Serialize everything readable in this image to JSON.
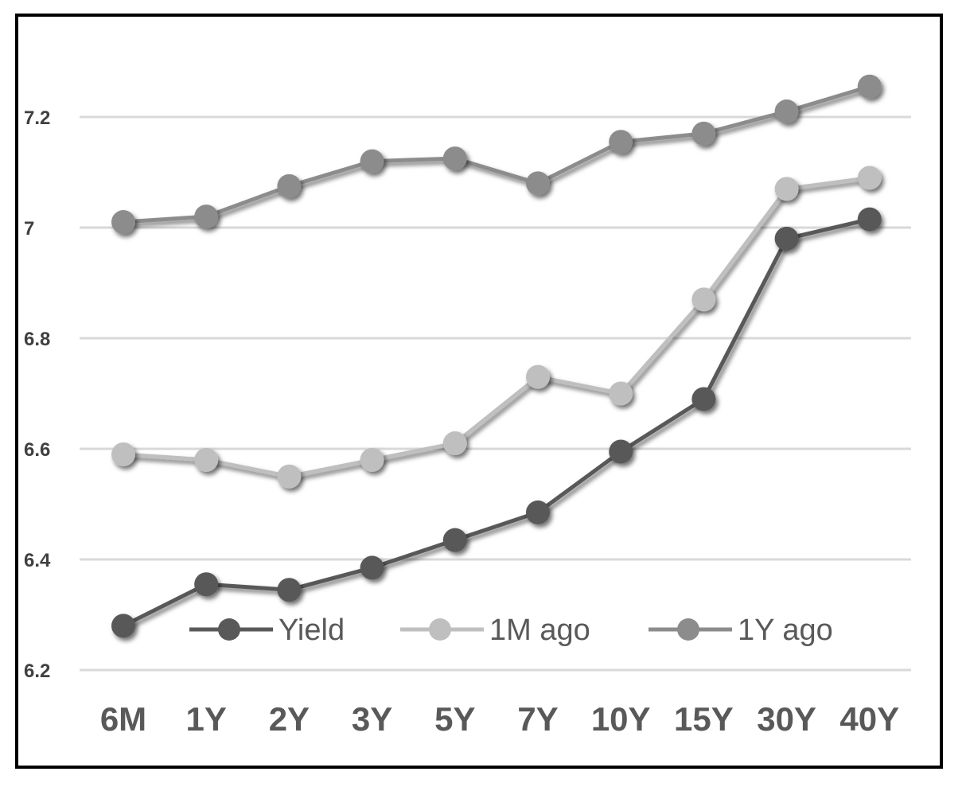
{
  "chart_data": {
    "type": "line",
    "title": "",
    "xlabel": "",
    "ylabel": "",
    "categories": [
      "6M",
      "1Y",
      "2Y",
      "3Y",
      "5Y",
      "7Y",
      "10Y",
      "15Y",
      "30Y",
      "40Y"
    ],
    "ylim": [
      6.2,
      7.3
    ],
    "yticks": [
      "6.2",
      "6.4",
      "6.6",
      "6.8",
      "7",
      "7.2"
    ],
    "grid": true,
    "legend_position": "bottom-inside",
    "series": [
      {
        "name": "Yield",
        "color": "#595959",
        "values": [
          6.28,
          6.355,
          6.345,
          6.385,
          6.435,
          6.485,
          6.595,
          6.69,
          6.98,
          7.015
        ]
      },
      {
        "name": "1M ago",
        "color": "#bfbfbf",
        "values": [
          6.59,
          6.58,
          6.55,
          6.58,
          6.61,
          6.73,
          6.7,
          6.87,
          7.07,
          7.09
        ]
      },
      {
        "name": "1Y ago",
        "color": "#8c8c8c",
        "values": [
          7.01,
          7.02,
          7.075,
          7.12,
          7.125,
          7.08,
          7.155,
          7.17,
          7.21,
          7.255
        ]
      }
    ]
  }
}
